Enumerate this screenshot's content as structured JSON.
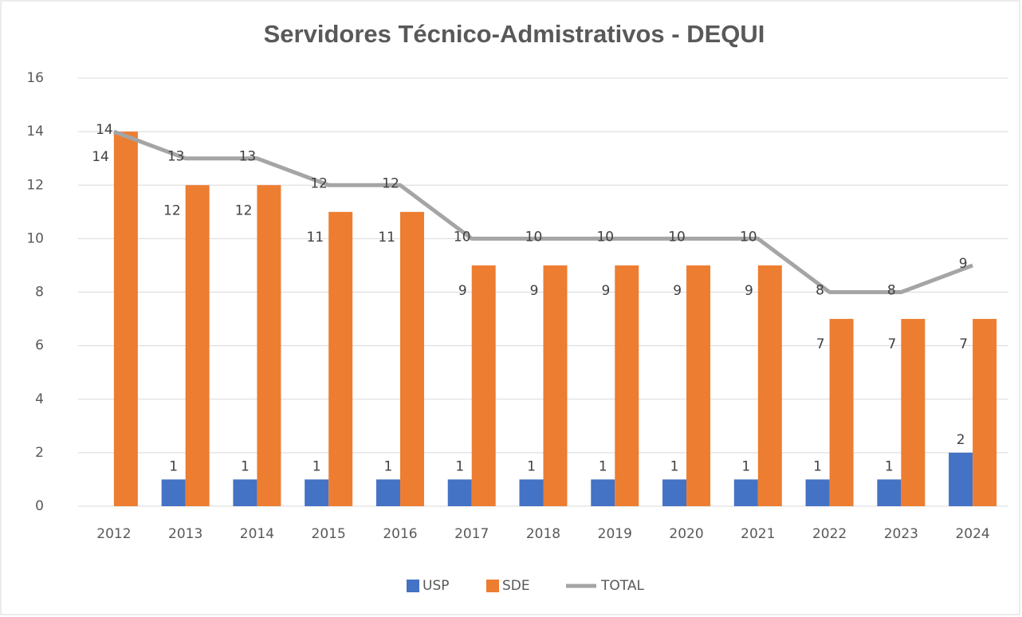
{
  "chart_data": {
    "type": "bar-line",
    "title": "Servidores Técnico-Admistrativos - DEQUI",
    "categories": [
      "2012",
      "2013",
      "2014",
      "2015",
      "2016",
      "2017",
      "2018",
      "2019",
      "2020",
      "2021",
      "2022",
      "2023",
      "2024"
    ],
    "series": [
      {
        "name": "USP",
        "type": "bar",
        "color": "#4472c4",
        "values": [
          null,
          1,
          1,
          1,
          1,
          1,
          1,
          1,
          1,
          1,
          1,
          1,
          2
        ]
      },
      {
        "name": "SDE",
        "type": "bar",
        "color": "#ed7d31",
        "values": [
          14,
          12,
          12,
          11,
          11,
          9,
          9,
          9,
          9,
          9,
          7,
          7,
          7
        ]
      },
      {
        "name": "TOTAL",
        "type": "line",
        "color": "#a5a5a5",
        "values": [
          14,
          13,
          13,
          12,
          12,
          10,
          10,
          10,
          10,
          10,
          8,
          8,
          9
        ]
      }
    ],
    "ylim": [
      0,
      16
    ],
    "yticks": [
      0,
      2,
      4,
      6,
      8,
      10,
      12,
      14,
      16
    ],
    "grid": true,
    "legend": "bottom"
  }
}
